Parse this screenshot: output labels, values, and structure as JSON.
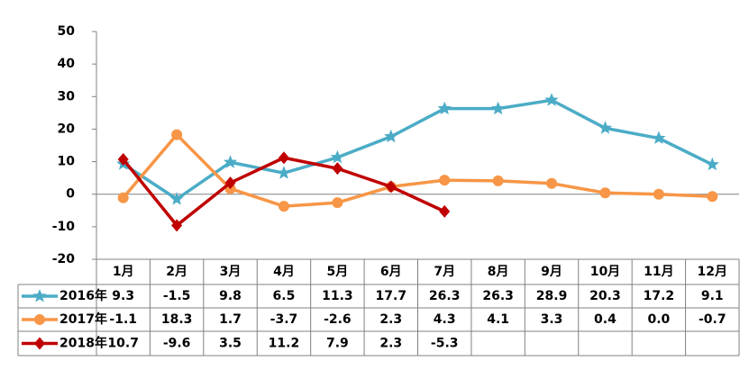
{
  "chart_data": {
    "type": "line",
    "categories": [
      "1月",
      "2月",
      "3月",
      "4月",
      "5月",
      "6月",
      "7月",
      "8月",
      "9月",
      "10月",
      "11月",
      "12月"
    ],
    "series": [
      {
        "name": "2016年",
        "color": "#4bacc6",
        "marker": "star",
        "values": [
          9.3,
          -1.5,
          9.8,
          6.5,
          11.3,
          17.7,
          26.3,
          26.3,
          28.9,
          20.3,
          17.2,
          9.1
        ],
        "value_labels": [
          "9.3",
          "-1.5",
          "9.8",
          "6.5",
          "11.3",
          "17.7",
          "26.3",
          "26.3",
          "28.9",
          "20.3",
          "17.2",
          "9.1"
        ]
      },
      {
        "name": "2017年",
        "color": "#f79646",
        "marker": "circle",
        "values": [
          -1.1,
          18.3,
          1.7,
          -3.7,
          -2.6,
          2.3,
          4.3,
          4.1,
          3.3,
          0.4,
          0.0,
          -0.7
        ],
        "value_labels": [
          "-1.1",
          "18.3",
          "1.7",
          "-3.7",
          "-2.6",
          "2.3",
          "4.3",
          "4.1",
          "3.3",
          "0.4",
          "0.0",
          "-0.7"
        ]
      },
      {
        "name": "2018年",
        "color": "#c00000",
        "marker": "diamond",
        "values": [
          10.7,
          -9.6,
          3.5,
          11.2,
          7.9,
          2.3,
          -5.3,
          null,
          null,
          null,
          null,
          null
        ],
        "value_labels": [
          "10.7",
          "-9.6",
          "3.5",
          "11.2",
          "7.9",
          "2.3",
          "-5.3",
          null,
          null,
          null,
          null,
          null
        ]
      }
    ],
    "ylim": [
      -20,
      50
    ],
    "yticks": [
      -20,
      -10,
      0,
      10,
      20,
      30,
      40,
      50
    ]
  }
}
